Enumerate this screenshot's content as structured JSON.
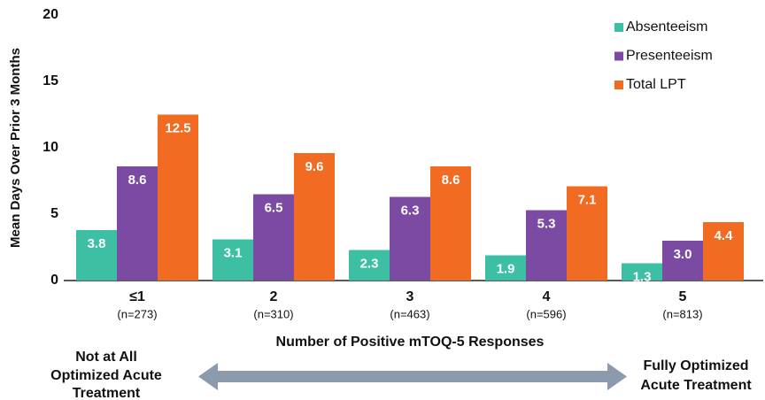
{
  "chart_data": {
    "type": "bar",
    "y_axis_label": "Mean Days Over Prior 3 Months",
    "x_axis_label": "Number of Positive mTOQ-5 Responses",
    "categories": [
      "≤1",
      "2",
      "3",
      "4",
      "5"
    ],
    "category_sublabels": [
      "(n=273)",
      "(n=310)",
      "(n=463)",
      "(n=596)",
      "(n=813)"
    ],
    "series": [
      {
        "name": "Absenteeism",
        "color": "#3dbfa4",
        "values": [
          3.8,
          3.1,
          2.3,
          1.9,
          1.3
        ],
        "value_labels": [
          "3.8",
          "3.1",
          "2.3",
          "1.9",
          "1.3"
        ]
      },
      {
        "name": "Presenteeism",
        "color": "#7b4aa3",
        "values": [
          8.6,
          6.5,
          6.3,
          5.3,
          3.0
        ],
        "value_labels": [
          "8.6",
          "6.5",
          "6.3",
          "5.3",
          "3.0"
        ]
      },
      {
        "name": "Total LPT",
        "color": "#f26b22",
        "values": [
          12.5,
          9.6,
          8.6,
          7.1,
          4.4
        ],
        "value_labels": [
          "12.5",
          "9.6",
          "8.6",
          "7.1",
          "4.4"
        ]
      }
    ],
    "ylim": [
      0,
      20
    ],
    "yticks": [
      0,
      5,
      10,
      15,
      20
    ],
    "grid": false,
    "legend": "top-right",
    "annotations": {
      "left": [
        "Not at All",
        "Optimized Acute",
        "Treatment"
      ],
      "right": [
        "Fully Optimized",
        "Acute Treatment"
      ]
    }
  }
}
